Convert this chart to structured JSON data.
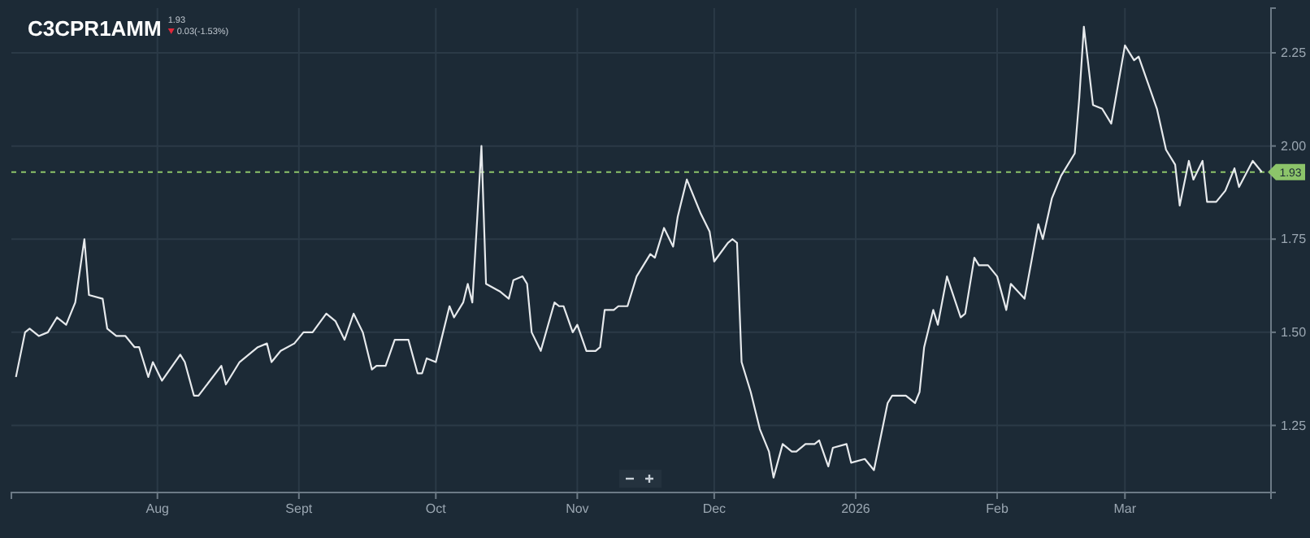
{
  "chart_data": {
    "type": "line",
    "title": "C3CPR1AMM",
    "annotations": [
      "1.93",
      "0.03(-1.53%)"
    ],
    "x": [
      "2025-07-01",
      "2025-07-03",
      "2025-07-04",
      "2025-07-06",
      "2025-07-08",
      "2025-07-10",
      "2025-07-12",
      "2025-07-14",
      "2025-07-16",
      "2025-07-17",
      "2025-07-20",
      "2025-07-21",
      "2025-07-23",
      "2025-07-25",
      "2025-07-27",
      "2025-07-28",
      "2025-07-30",
      "2025-07-31",
      "2025-08-02",
      "2025-08-06",
      "2025-08-07",
      "2025-08-09",
      "2025-08-10",
      "2025-08-15",
      "2025-08-16",
      "2025-08-19",
      "2025-08-23",
      "2025-08-25",
      "2025-08-26",
      "2025-08-28",
      "2025-08-31",
      "2025-09-02",
      "2025-09-04",
      "2025-09-07",
      "2025-09-09",
      "2025-09-11",
      "2025-09-13",
      "2025-09-15",
      "2025-09-17",
      "2025-09-18",
      "2025-09-20",
      "2025-09-22",
      "2025-09-25",
      "2025-09-27",
      "2025-09-28",
      "2025-09-29",
      "2025-10-01",
      "2025-10-02",
      "2025-10-04",
      "2025-10-05",
      "2025-10-07",
      "2025-10-08",
      "2025-10-09",
      "2025-10-11",
      "2025-10-12",
      "2025-10-15",
      "2025-10-17",
      "2025-10-18",
      "2025-10-20",
      "2025-10-21",
      "2025-10-22",
      "2025-10-24",
      "2025-10-27",
      "2025-10-28",
      "2025-10-29",
      "2025-10-31",
      "2025-11-01",
      "2025-11-03",
      "2025-11-05",
      "2025-11-06",
      "2025-11-07",
      "2025-11-09",
      "2025-11-10",
      "2025-11-12",
      "2025-11-14",
      "2025-11-17",
      "2025-11-18",
      "2025-11-20",
      "2025-11-22",
      "2025-11-23",
      "2025-11-25",
      "2025-11-28",
      "2025-11-30",
      "2025-12-01",
      "2025-12-04",
      "2025-12-05",
      "2025-12-06",
      "2025-12-07",
      "2025-12-09",
      "2025-12-11",
      "2025-12-13",
      "2025-12-14",
      "2025-12-16",
      "2025-12-18",
      "2025-12-19",
      "2025-12-21",
      "2025-12-23",
      "2025-12-24",
      "2025-12-26",
      "2025-12-27",
      "2025-12-30",
      "2025-12-31",
      "2026-01-03",
      "2026-01-05",
      "2026-01-08",
      "2026-01-09",
      "2026-01-11",
      "2026-01-12",
      "2026-01-14",
      "2026-01-15",
      "2026-01-16",
      "2026-01-18",
      "2026-01-19",
      "2026-01-21",
      "2026-01-24",
      "2026-01-25",
      "2026-01-27",
      "2026-01-28",
      "2026-01-30",
      "2026-02-01",
      "2026-02-03",
      "2026-02-04",
      "2026-02-07",
      "2026-02-10",
      "2026-02-11",
      "2026-02-13",
      "2026-02-15",
      "2026-02-18",
      "2026-02-19",
      "2026-02-20",
      "2026-02-22",
      "2026-02-24",
      "2026-02-26",
      "2026-03-01",
      "2026-03-03",
      "2026-03-04",
      "2026-03-06",
      "2026-03-08",
      "2026-03-10",
      "2026-03-12",
      "2026-03-13",
      "2026-03-15",
      "2026-03-16",
      "2026-03-18",
      "2026-03-19",
      "2026-03-21",
      "2026-03-23",
      "2026-03-25",
      "2026-03-26",
      "2026-03-29",
      "2026-03-31"
    ],
    "series": [
      {
        "color": "#e6e9ec",
        "values": [
          1.38,
          1.5,
          1.51,
          1.49,
          1.5,
          1.54,
          1.52,
          1.58,
          1.75,
          1.6,
          1.59,
          1.51,
          1.49,
          1.49,
          1.46,
          1.46,
          1.38,
          1.42,
          1.37,
          1.44,
          1.42,
          1.33,
          1.33,
          1.41,
          1.36,
          1.42,
          1.46,
          1.47,
          1.42,
          1.45,
          1.47,
          1.5,
          1.5,
          1.55,
          1.53,
          1.48,
          1.55,
          1.5,
          1.4,
          1.41,
          1.41,
          1.48,
          1.48,
          1.39,
          1.39,
          1.43,
          1.42,
          1.47,
          1.57,
          1.54,
          1.58,
          1.63,
          1.58,
          2.0,
          1.63,
          1.61,
          1.59,
          1.64,
          1.65,
          1.63,
          1.5,
          1.45,
          1.58,
          1.57,
          1.57,
          1.5,
          1.52,
          1.45,
          1.45,
          1.46,
          1.56,
          1.56,
          1.57,
          1.57,
          1.65,
          1.71,
          1.7,
          1.78,
          1.73,
          1.81,
          1.91,
          1.82,
          1.77,
          1.69,
          1.74,
          1.75,
          1.74,
          1.42,
          1.34,
          1.24,
          1.18,
          1.11,
          1.2,
          1.18,
          1.18,
          1.2,
          1.2,
          1.21,
          1.14,
          1.19,
          1.2,
          1.15,
          1.16,
          1.13,
          1.31,
          1.33,
          1.33,
          1.33,
          1.31,
          1.34,
          1.46,
          1.56,
          1.52,
          1.65,
          1.54,
          1.55,
          1.7,
          1.68,
          1.68,
          1.65,
          1.56,
          1.63,
          1.59,
          1.79,
          1.75,
          1.86,
          1.92,
          1.98,
          2.13,
          2.32,
          2.11,
          2.1,
          2.06,
          2.27,
          2.23,
          2.24,
          2.17,
          2.1,
          1.99,
          1.95,
          1.84,
          1.96,
          1.91,
          1.96,
          1.85,
          1.85,
          1.88,
          1.94,
          1.89,
          1.96,
          1.93
        ]
      }
    ],
    "xlim": [
      "2025-06-30",
      "2026-04-02"
    ],
    "xticks": [
      {
        "value": "2025-08-01",
        "label": "Aug"
      },
      {
        "value": "2025-09-01",
        "label": "Sept"
      },
      {
        "value": "2025-10-01",
        "label": "Oct"
      },
      {
        "value": "2025-11-01",
        "label": "Nov"
      },
      {
        "value": "2025-12-01",
        "label": "Dec"
      },
      {
        "value": "2026-01-01",
        "label": "2026"
      },
      {
        "value": "2026-02-01",
        "label": "Feb"
      },
      {
        "value": "2026-03-01",
        "label": "Mar"
      }
    ],
    "ylim": [
      1.07,
      2.37
    ],
    "yticks": [
      {
        "value": 1.25,
        "label": "1.25"
      },
      {
        "value": 1.5,
        "label": "1.50"
      },
      {
        "value": 1.75,
        "label": "1.75"
      },
      {
        "value": 2,
        "label": "2.00"
      },
      {
        "value": 2.25,
        "label": "2.25"
      }
    ],
    "ref_lines": [
      {
        "axis": "y",
        "value": 1.93,
        "label": "1.93",
        "color": "#8cc46a",
        "line_style": "dashed"
      }
    ],
    "grid": true,
    "marker": "none",
    "line_style": "solid"
  }
}
